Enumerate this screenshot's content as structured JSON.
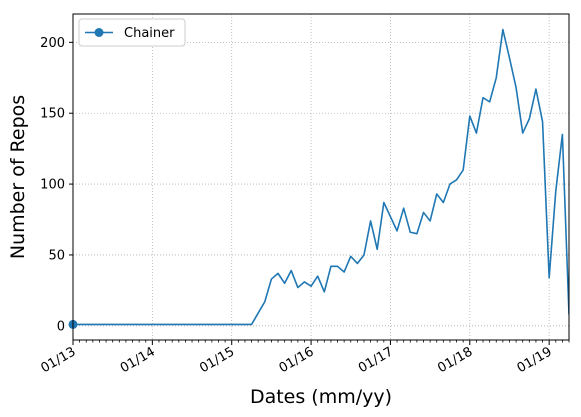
{
  "chart_data": {
    "type": "line",
    "title": "",
    "xlabel": "Dates (mm/yy)",
    "ylabel": "Number of Repos",
    "x_tick_labels": [
      "01/13",
      "01/14",
      "01/15",
      "01/16",
      "01/17",
      "01/18",
      "01/19"
    ],
    "y_tick_labels": [
      "0",
      "50",
      "100",
      "150",
      "200"
    ],
    "y_ticks": [
      0,
      50,
      100,
      150,
      200
    ],
    "xlim": [
      "2013-01",
      "2019-04"
    ],
    "ylim": [
      -10,
      220
    ],
    "grid": true,
    "legend_position": "upper-left",
    "series": [
      {
        "name": "Chainer",
        "color": "#1f77b4",
        "marker_at_start": true,
        "x": [
          "2013-01",
          "2013-02",
          "2013-03",
          "2013-04",
          "2013-05",
          "2013-06",
          "2013-07",
          "2013-08",
          "2013-09",
          "2013-10",
          "2013-11",
          "2013-12",
          "2014-01",
          "2014-02",
          "2014-03",
          "2014-04",
          "2014-05",
          "2014-06",
          "2014-07",
          "2014-08",
          "2014-09",
          "2014-10",
          "2014-11",
          "2014-12",
          "2015-01",
          "2015-02",
          "2015-03",
          "2015-04",
          "2015-05",
          "2015-06",
          "2015-07",
          "2015-08",
          "2015-09",
          "2015-10",
          "2015-11",
          "2015-12",
          "2016-01",
          "2016-02",
          "2016-03",
          "2016-04",
          "2016-05",
          "2016-06",
          "2016-07",
          "2016-08",
          "2016-09",
          "2016-10",
          "2016-11",
          "2016-12",
          "2017-01",
          "2017-02",
          "2017-03",
          "2017-04",
          "2017-05",
          "2017-06",
          "2017-07",
          "2017-08",
          "2017-09",
          "2017-10",
          "2017-11",
          "2017-12",
          "2018-01",
          "2018-02",
          "2018-03",
          "2018-04",
          "2018-05",
          "2018-06",
          "2018-07",
          "2018-08",
          "2018-09",
          "2018-10",
          "2018-11",
          "2018-12",
          "2019-01",
          "2019-02",
          "2019-03",
          "2019-04"
        ],
        "y": [
          1,
          1,
          1,
          1,
          1,
          1,
          1,
          1,
          1,
          1,
          1,
          1,
          1,
          1,
          1,
          1,
          1,
          1,
          1,
          1,
          1,
          1,
          1,
          1,
          1,
          1,
          1,
          1,
          9,
          17,
          33,
          37,
          30,
          39,
          27,
          31,
          28,
          35,
          24,
          42,
          42,
          38,
          49,
          44,
          50,
          74,
          54,
          87,
          77,
          67,
          83,
          66,
          65,
          80,
          74,
          93,
          87,
          100,
          103,
          110,
          148,
          136,
          161,
          158,
          175,
          209,
          189,
          168,
          136,
          146,
          167,
          144,
          34,
          95,
          135,
          8
        ]
      }
    ]
  }
}
